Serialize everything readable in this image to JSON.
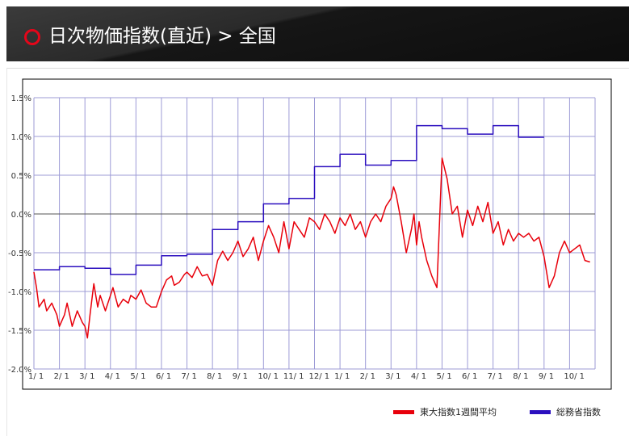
{
  "header": {
    "title": "日次物価指数(直近) > 全国",
    "accent_color": "#e4061a"
  },
  "chart_data": {
    "type": "line",
    "title": "",
    "xlabel": "",
    "ylabel": "",
    "ylim": [
      -2.0,
      1.5
    ],
    "yticks": [
      1.5,
      1.0,
      0.5,
      0.0,
      -0.5,
      -1.0,
      -1.5,
      -2.0
    ],
    "ytick_labels": [
      "1.5%",
      "1.0%",
      "0.5%",
      "0.0%",
      "-0.5%",
      "-1.0%",
      "-1.5%",
      "-2.0%"
    ],
    "xlim": [
      0,
      22
    ],
    "xtick_labels": [
      "1/ 1",
      "2/ 1",
      "3/ 1",
      "4/ 1",
      "5/ 1",
      "6/ 1",
      "7/ 1",
      "8/ 1",
      "9/ 1",
      "10/ 1",
      "11/ 1",
      "12/ 1",
      "1/ 1",
      "2/ 1",
      "3/ 1",
      "4/ 1",
      "5/ 1",
      "6/ 1",
      "7/ 1",
      "8/ 1",
      "9/ 1",
      "10/ 1"
    ],
    "grid": true,
    "legend_position": "bottom-right",
    "series": [
      {
        "name": "東大指数1週間平均",
        "color": "#e8000b",
        "x": [
          0,
          0.1,
          0.2,
          0.3,
          0.4,
          0.5,
          0.7,
          0.9,
          1.0,
          1.2,
          1.3,
          1.5,
          1.7,
          1.9,
          2.0,
          2.1,
          2.2,
          2.35,
          2.5,
          2.6,
          2.8,
          3.0,
          3.1,
          3.3,
          3.5,
          3.7,
          3.8,
          4.0,
          4.2,
          4.4,
          4.6,
          4.8,
          5.0,
          5.2,
          5.4,
          5.5,
          5.7,
          5.9,
          6.0,
          6.2,
          6.4,
          6.6,
          6.8,
          7.0,
          7.2,
          7.4,
          7.6,
          7.8,
          8.0,
          8.2,
          8.4,
          8.6,
          8.8,
          9.0,
          9.2,
          9.4,
          9.6,
          9.8,
          10.0,
          10.2,
          10.4,
          10.6,
          10.8,
          11.0,
          11.2,
          11.4,
          11.6,
          11.8,
          12.0,
          12.2,
          12.4,
          12.6,
          12.8,
          13.0,
          13.2,
          13.4,
          13.6,
          13.8,
          14.0,
          14.1,
          14.2,
          14.4,
          14.6,
          14.8,
          14.9,
          15.0,
          15.1,
          15.2,
          15.4,
          15.6,
          15.8,
          16.0,
          16.2,
          16.4,
          16.6,
          16.8,
          17.0,
          17.2,
          17.4,
          17.6,
          17.8,
          18.0,
          18.2,
          18.4,
          18.6,
          18.8,
          19.0,
          19.2,
          19.4,
          19.6,
          19.8,
          20.0,
          20.2,
          20.4,
          20.6,
          20.8,
          21.0,
          21.2,
          21.4,
          21.6,
          21.8
        ],
        "values": [
          -0.75,
          -0.95,
          -1.2,
          -1.15,
          -1.1,
          -1.25,
          -1.15,
          -1.3,
          -1.45,
          -1.3,
          -1.15,
          -1.45,
          -1.25,
          -1.4,
          -1.45,
          -1.6,
          -1.3,
          -0.9,
          -1.2,
          -1.05,
          -1.25,
          -1.05,
          -0.95,
          -1.2,
          -1.1,
          -1.15,
          -1.05,
          -1.1,
          -0.98,
          -1.15,
          -1.2,
          -1.2,
          -1.0,
          -0.85,
          -0.8,
          -0.92,
          -0.88,
          -0.78,
          -0.75,
          -0.82,
          -0.68,
          -0.8,
          -0.78,
          -0.92,
          -0.6,
          -0.48,
          -0.6,
          -0.5,
          -0.35,
          -0.55,
          -0.45,
          -0.3,
          -0.6,
          -0.35,
          -0.15,
          -0.3,
          -0.5,
          -0.1,
          -0.45,
          -0.1,
          -0.2,
          -0.3,
          -0.05,
          -0.1,
          -0.2,
          0.0,
          -0.1,
          -0.25,
          -0.05,
          -0.15,
          0.0,
          -0.2,
          -0.1,
          -0.3,
          -0.1,
          0.0,
          -0.1,
          0.1,
          0.2,
          0.35,
          0.25,
          -0.1,
          -0.5,
          -0.2,
          0.0,
          -0.4,
          -0.1,
          -0.3,
          -0.6,
          -0.8,
          -0.95,
          0.72,
          0.45,
          0.0,
          0.1,
          -0.3,
          0.05,
          -0.15,
          0.1,
          -0.1,
          0.15,
          -0.25,
          -0.1,
          -0.4,
          -0.2,
          -0.35,
          -0.25,
          -0.3,
          -0.25,
          -0.35,
          -0.3,
          -0.55,
          -0.95,
          -0.8,
          -0.5,
          -0.35,
          -0.5,
          -0.45,
          -0.4,
          -0.6,
          -0.62
        ]
      },
      {
        "name": "総務省指数",
        "color": "#2b0fbf",
        "x": [
          0,
          1,
          1,
          2,
          2,
          3,
          3,
          4,
          4,
          5,
          5,
          6,
          6,
          7,
          7,
          8,
          8,
          9,
          9,
          10,
          10,
          11,
          11,
          12,
          12,
          13,
          13,
          14,
          14,
          15,
          15,
          16,
          16,
          17,
          17,
          18,
          18,
          19,
          19,
          20
        ],
        "values": [
          -0.72,
          -0.72,
          -0.68,
          -0.68,
          -0.7,
          -0.7,
          -0.78,
          -0.78,
          -0.66,
          -0.66,
          -0.54,
          -0.54,
          -0.52,
          -0.52,
          -0.2,
          -0.2,
          -0.1,
          -0.1,
          0.13,
          0.13,
          0.2,
          0.2,
          0.61,
          0.61,
          0.77,
          0.77,
          0.63,
          0.63,
          0.69,
          0.69,
          1.14,
          1.14,
          1.1,
          1.1,
          1.03,
          1.03,
          1.14,
          1.14,
          0.99,
          0.99
        ]
      }
    ]
  }
}
